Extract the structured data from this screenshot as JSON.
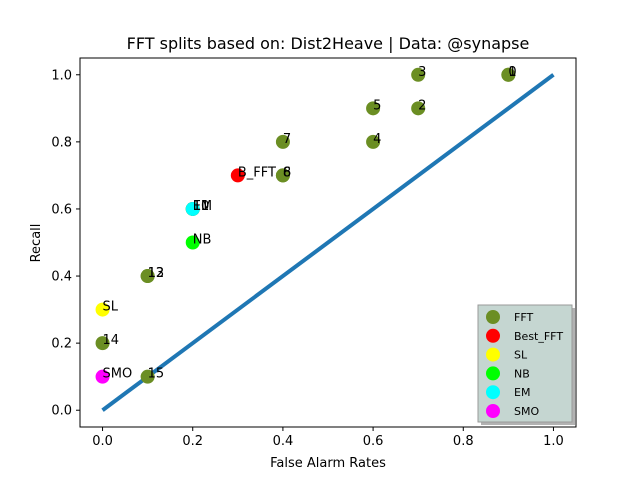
{
  "chart_data": {
    "type": "scatter",
    "title": "FFT splits based on: Dist2Heave  |  Data: @synapse",
    "xlabel": "False Alarm Rates",
    "ylabel": "Recall",
    "xlim": [
      -0.05,
      1.05
    ],
    "ylim": [
      -0.05,
      1.05
    ],
    "xticks": [
      "0.0",
      "0.2",
      "0.4",
      "0.6",
      "0.8",
      "1.0"
    ],
    "yticks": [
      "0.0",
      "0.2",
      "0.4",
      "0.6",
      "0.8",
      "1.0"
    ],
    "diagonal": {
      "from": [
        0,
        0
      ],
      "to": [
        1,
        1
      ],
      "color": "#1f77b4"
    },
    "grid": false,
    "legend_position": "bottom-right",
    "series": [
      {
        "name": "FFT",
        "color": "#6b8e23",
        "points": [
          {
            "x": 0.9,
            "y": 1.0,
            "label": "0"
          },
          {
            "x": 0.9,
            "y": 1.0,
            "label": "1"
          },
          {
            "x": 0.7,
            "y": 0.9,
            "label": "2"
          },
          {
            "x": 0.7,
            "y": 1.0,
            "label": "3"
          },
          {
            "x": 0.6,
            "y": 0.8,
            "label": "4"
          },
          {
            "x": 0.6,
            "y": 0.9,
            "label": "5"
          },
          {
            "x": 0.4,
            "y": 0.7,
            "label": "6"
          },
          {
            "x": 0.4,
            "y": 0.8,
            "label": "7"
          },
          {
            "x": 0.4,
            "y": 0.7,
            "label": "8"
          },
          {
            "x": 0.2,
            "y": 0.6,
            "label": "10"
          },
          {
            "x": 0.2,
            "y": 0.6,
            "label": "11"
          },
          {
            "x": 0.1,
            "y": 0.4,
            "label": "12"
          },
          {
            "x": 0.1,
            "y": 0.4,
            "label": "13"
          },
          {
            "x": 0.0,
            "y": 0.2,
            "label": "14"
          },
          {
            "x": 0.1,
            "y": 0.1,
            "label": "15"
          }
        ]
      },
      {
        "name": "Best_FFT",
        "color": "#ff0000",
        "points": [
          {
            "x": 0.3,
            "y": 0.7,
            "label": "B_FFT"
          }
        ]
      },
      {
        "name": "SL",
        "color": "#ffff00",
        "points": [
          {
            "x": 0.0,
            "y": 0.3,
            "label": "SL"
          }
        ]
      },
      {
        "name": "NB",
        "color": "#00ff00",
        "points": [
          {
            "x": 0.2,
            "y": 0.5,
            "label": "NB"
          }
        ]
      },
      {
        "name": "EM",
        "color": "#00ffff",
        "points": [
          {
            "x": 0.2,
            "y": 0.6,
            "label": "EM"
          }
        ]
      },
      {
        "name": "SMO",
        "color": "#ff00ff",
        "points": [
          {
            "x": 0.0,
            "y": 0.1,
            "label": "SMO"
          }
        ]
      }
    ]
  }
}
